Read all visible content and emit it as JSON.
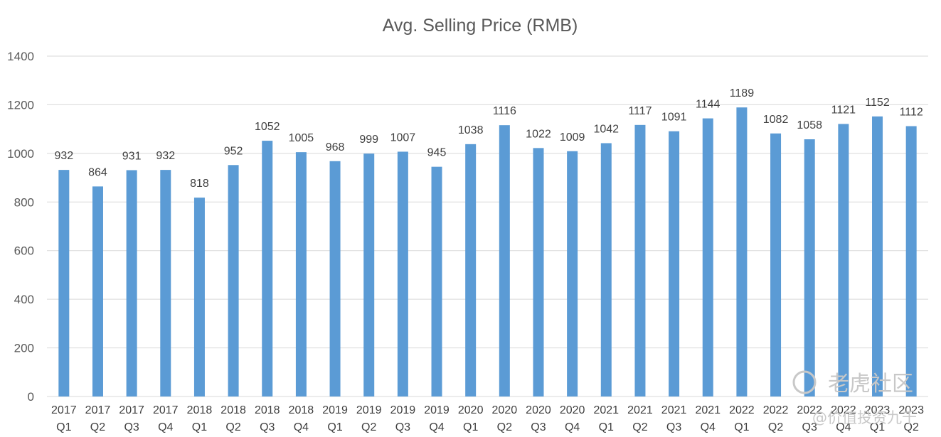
{
  "chart_data": {
    "type": "bar",
    "title": "Avg. Selling Price (RMB)",
    "categories": [
      [
        "2017",
        "Q1"
      ],
      [
        "2017",
        "Q2"
      ],
      [
        "2017",
        "Q3"
      ],
      [
        "2017",
        "Q4"
      ],
      [
        "2018",
        "Q1"
      ],
      [
        "2018",
        "Q2"
      ],
      [
        "2018",
        "Q3"
      ],
      [
        "2018",
        "Q4"
      ],
      [
        "2019",
        "Q1"
      ],
      [
        "2019",
        "Q2"
      ],
      [
        "2019",
        "Q3"
      ],
      [
        "2019",
        "Q4"
      ],
      [
        "2020",
        "Q1"
      ],
      [
        "2020",
        "Q2"
      ],
      [
        "2020",
        "Q3"
      ],
      [
        "2020",
        "Q4"
      ],
      [
        "2021",
        "Q1"
      ],
      [
        "2021",
        "Q2"
      ],
      [
        "2021",
        "Q3"
      ],
      [
        "2021",
        "Q4"
      ],
      [
        "2022",
        "Q1"
      ],
      [
        "2022",
        "Q2"
      ],
      [
        "2022",
        "Q3"
      ],
      [
        "2022",
        "Q4"
      ],
      [
        "2023",
        "Q1"
      ],
      [
        "2023",
        "Q2"
      ]
    ],
    "values": [
      932,
      864,
      931,
      932,
      818,
      952,
      1052,
      1005,
      968,
      999,
      1007,
      945,
      1038,
      1116,
      1022,
      1009,
      1042,
      1117,
      1091,
      1144,
      1189,
      1082,
      1058,
      1121,
      1152,
      1112
    ],
    "y_ticks": [
      0,
      200,
      400,
      600,
      800,
      1000,
      1200,
      1400
    ],
    "ylim": [
      0,
      1400
    ],
    "grid": true,
    "bar_color": "#5b9bd5",
    "xlabel": "",
    "ylabel": ""
  },
  "watermark": {
    "brand": "老虎社区",
    "handle": "@价值投资九千"
  }
}
